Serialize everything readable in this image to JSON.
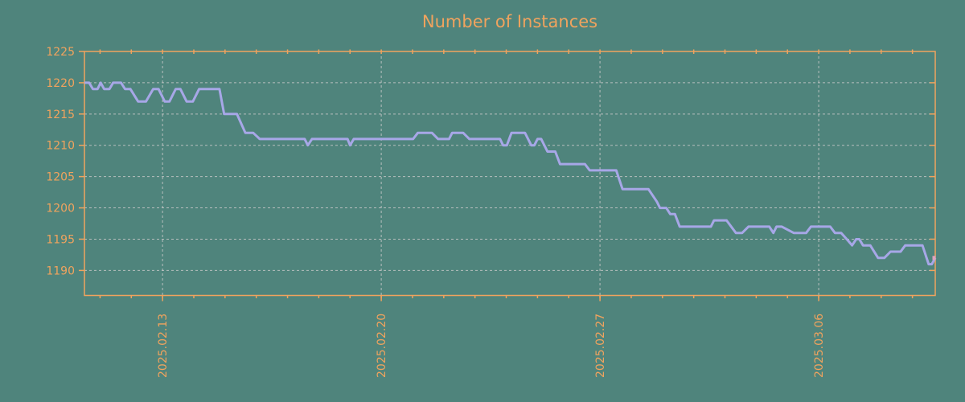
{
  "colors": {
    "background": "#4F847C",
    "accent_orange": "#F0A35E",
    "series_line": "#A7A7E7",
    "gridline": "#C9C9C9",
    "endpoint_marker": "#DFA3BE"
  },
  "chart_data": {
    "type": "line",
    "title": "Number of Instances",
    "xlabel": "",
    "ylabel": "",
    "grid": true,
    "legend": "none",
    "ylim": [
      1186,
      1225
    ],
    "yticks": [
      1190,
      1195,
      1200,
      1205,
      1210,
      1215,
      1220,
      1225
    ],
    "y_gridlines": [
      1190,
      1195,
      1200,
      1205,
      1210,
      1215,
      1220
    ],
    "x_domain_days": [
      0,
      27.23
    ],
    "x_minor_tick_start_day": 0.5,
    "x_minor_tick_step_days": 1,
    "xticks_major": [
      {
        "day": 2.5,
        "label": "2025.02.13"
      },
      {
        "day": 9.5,
        "label": "2025.02.20"
      },
      {
        "day": 16.5,
        "label": "2025.02.27"
      },
      {
        "day": 23.5,
        "label": "2025.03.06"
      }
    ],
    "series": [
      {
        "name": "instances",
        "points": [
          [
            0.0,
            1220
          ],
          [
            0.15,
            1220
          ],
          [
            0.27,
            1219
          ],
          [
            0.42,
            1219
          ],
          [
            0.52,
            1220
          ],
          [
            0.63,
            1219
          ],
          [
            0.8,
            1219
          ],
          [
            0.92,
            1220
          ],
          [
            1.17,
            1220
          ],
          [
            1.3,
            1219
          ],
          [
            1.47,
            1219
          ],
          [
            1.72,
            1217
          ],
          [
            1.97,
            1217
          ],
          [
            2.2,
            1219
          ],
          [
            2.37,
            1219
          ],
          [
            2.57,
            1217
          ],
          [
            2.72,
            1217
          ],
          [
            2.92,
            1219
          ],
          [
            3.07,
            1219
          ],
          [
            3.27,
            1217
          ],
          [
            3.47,
            1217
          ],
          [
            3.67,
            1219
          ],
          [
            4.32,
            1219
          ],
          [
            4.47,
            1215
          ],
          [
            4.88,
            1215
          ],
          [
            5.15,
            1212
          ],
          [
            5.4,
            1212
          ],
          [
            5.61,
            1211
          ],
          [
            7.05,
            1211
          ],
          [
            7.15,
            1210
          ],
          [
            7.28,
            1211
          ],
          [
            8.42,
            1211
          ],
          [
            8.5,
            1210
          ],
          [
            8.62,
            1211
          ],
          [
            10.52,
            1211
          ],
          [
            10.67,
            1212
          ],
          [
            11.12,
            1212
          ],
          [
            11.32,
            1211
          ],
          [
            11.67,
            1211
          ],
          [
            11.77,
            1212
          ],
          [
            12.12,
            1212
          ],
          [
            12.32,
            1211
          ],
          [
            13.3,
            1211
          ],
          [
            13.4,
            1210
          ],
          [
            13.52,
            1210
          ],
          [
            13.67,
            1212
          ],
          [
            14.1,
            1212
          ],
          [
            14.3,
            1210
          ],
          [
            14.4,
            1210
          ],
          [
            14.5,
            1211
          ],
          [
            14.62,
            1211
          ],
          [
            14.82,
            1209
          ],
          [
            15.07,
            1209
          ],
          [
            15.22,
            1207
          ],
          [
            16.02,
            1207
          ],
          [
            16.17,
            1206
          ],
          [
            17.02,
            1206
          ],
          [
            17.22,
            1203
          ],
          [
            18.05,
            1203
          ],
          [
            18.32,
            1201
          ],
          [
            18.42,
            1200
          ],
          [
            18.62,
            1200
          ],
          [
            18.75,
            1199
          ],
          [
            18.9,
            1199
          ],
          [
            19.05,
            1197
          ],
          [
            20.05,
            1197
          ],
          [
            20.15,
            1198
          ],
          [
            20.55,
            1198
          ],
          [
            20.85,
            1196
          ],
          [
            21.05,
            1196
          ],
          [
            21.25,
            1197
          ],
          [
            21.92,
            1197
          ],
          [
            22.05,
            1196
          ],
          [
            22.15,
            1197
          ],
          [
            22.32,
            1197
          ],
          [
            22.7,
            1196
          ],
          [
            23.1,
            1196
          ],
          [
            23.25,
            1197
          ],
          [
            23.87,
            1197
          ],
          [
            24.02,
            1196
          ],
          [
            24.22,
            1196
          ],
          [
            24.4,
            1195
          ],
          [
            24.57,
            1194
          ],
          [
            24.7,
            1195
          ],
          [
            24.8,
            1195
          ],
          [
            24.92,
            1194
          ],
          [
            25.15,
            1194
          ],
          [
            25.4,
            1192
          ],
          [
            25.6,
            1192
          ],
          [
            25.8,
            1193
          ],
          [
            26.12,
            1193
          ],
          [
            26.27,
            1194
          ],
          [
            26.82,
            1194
          ],
          [
            27.02,
            1191
          ],
          [
            27.12,
            1191
          ],
          [
            27.23,
            1192
          ]
        ]
      }
    ]
  }
}
